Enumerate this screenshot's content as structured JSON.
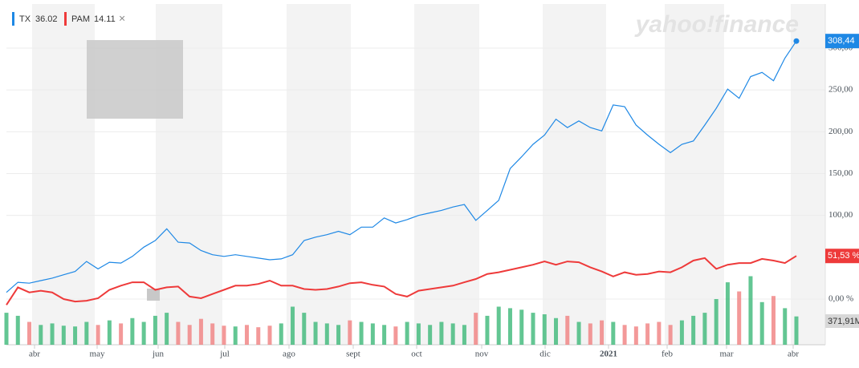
{
  "chart_data": {
    "type": "line",
    "watermark": "yahoo!finance",
    "month_labels": [
      "abr",
      "may",
      "jun",
      "jul",
      "ago",
      "sept",
      "oct",
      "nov",
      "dic",
      "2021",
      "feb",
      "mar",
      "abr"
    ],
    "ylim": [
      -10,
      320
    ],
    "yticks": [
      {
        "value": 0,
        "label": "0,00 %"
      },
      {
        "value": 100,
        "label": "100,00"
      },
      {
        "value": 150,
        "label": "150,00"
      },
      {
        "value": 200,
        "label": "200,00"
      },
      {
        "value": 250,
        "label": "250,00"
      },
      {
        "value": 300,
        "label": "300,00"
      }
    ],
    "grid": true,
    "close_symbol": "×",
    "series": [
      {
        "name": "TX",
        "legend_value": "36.02",
        "color": "#1e88e5",
        "values": [
          8,
          20,
          19,
          22,
          25,
          29,
          33,
          45,
          36,
          44,
          43,
          51,
          62,
          70,
          84,
          68,
          67,
          58,
          53,
          51,
          53,
          51,
          49,
          47,
          48,
          53,
          70,
          74,
          77,
          81,
          77,
          86,
          86,
          97,
          91,
          95,
          100,
          103,
          106,
          110,
          113,
          94,
          106,
          118,
          156,
          170,
          185,
          196,
          215,
          205,
          213,
          205,
          201,
          232,
          230,
          208,
          196,
          185,
          175,
          185,
          189,
          208,
          228,
          251,
          240,
          266,
          271,
          261,
          288,
          308.44
        ],
        "value_labels": [
          null,
          null,
          null,
          null,
          null,
          null,
          null,
          null,
          null,
          null,
          null,
          null,
          null,
          null,
          null,
          null,
          null,
          null,
          null,
          null,
          null,
          null,
          null,
          null,
          null,
          null,
          null,
          null,
          null,
          null,
          null,
          null,
          null,
          null,
          null,
          null,
          null,
          null,
          null,
          null,
          null,
          null,
          null,
          null,
          null,
          null,
          null,
          null,
          null,
          null,
          null,
          null,
          null,
          null,
          null,
          null,
          null,
          null,
          null,
          null,
          null,
          null,
          null,
          null,
          null,
          null,
          null,
          null,
          null,
          "308,44"
        ]
      },
      {
        "name": "PAM",
        "legend_value": "14.11",
        "color": "#ee3a3a",
        "values": [
          -7,
          14,
          8,
          10,
          8,
          0,
          -3,
          -2,
          1,
          11,
          16,
          20,
          20,
          11,
          14,
          15,
          3,
          1,
          6,
          11,
          16,
          16,
          18,
          22,
          16,
          16,
          12,
          11,
          12,
          15,
          19,
          20,
          17,
          15,
          6,
          3,
          10,
          12,
          14,
          16,
          20,
          24,
          30,
          32,
          35,
          38,
          41,
          45,
          41,
          45,
          44,
          38,
          33,
          27,
          32,
          29,
          30,
          33,
          32,
          38,
          46,
          49,
          36,
          41,
          43,
          43,
          48,
          46,
          43,
          51.53
        ],
        "value_labels": [
          null,
          null,
          null,
          null,
          null,
          null,
          null,
          null,
          null,
          null,
          null,
          null,
          null,
          null,
          null,
          null,
          null,
          null,
          null,
          null,
          null,
          null,
          null,
          null,
          null,
          null,
          null,
          null,
          null,
          null,
          null,
          null,
          null,
          null,
          null,
          null,
          null,
          null,
          null,
          null,
          null,
          null,
          null,
          null,
          null,
          null,
          null,
          null,
          null,
          null,
          null,
          null,
          null,
          null,
          null,
          null,
          null,
          null,
          null,
          null,
          null,
          null,
          null,
          null,
          null,
          null,
          null,
          null,
          null,
          "51,53 %"
        ]
      }
    ],
    "volume": {
      "up_color": "#3cb878",
      "down_color": "#f08080",
      "ylim": [
        0,
        1000
      ],
      "values": [
        420,
        380,
        300,
        260,
        280,
        250,
        240,
        300,
        260,
        320,
        280,
        350,
        300,
        380,
        420,
        300,
        260,
        340,
        280,
        250,
        240,
        260,
        230,
        250,
        280,
        500,
        420,
        300,
        280,
        260,
        320,
        300,
        280,
        260,
        240,
        300,
        280,
        260,
        300,
        280,
        260,
        420,
        380,
        500,
        480,
        460,
        420,
        400,
        350,
        380,
        300,
        280,
        320,
        300,
        260,
        240,
        280,
        300,
        260,
        320,
        380,
        420,
        600,
        820,
        700,
        900,
        560,
        640,
        480,
        371.91
      ],
      "last_label": "371,91M"
    }
  }
}
